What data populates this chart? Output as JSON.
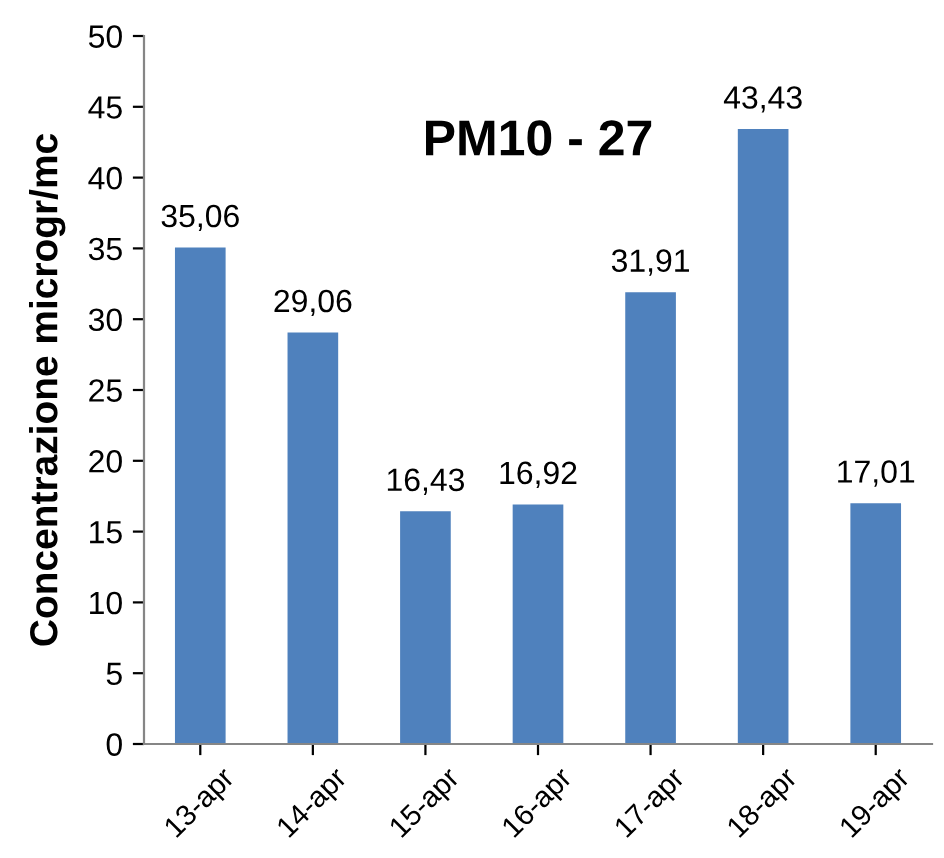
{
  "chart_data": {
    "type": "bar",
    "title": "PM10 - 27",
    "ylabel": "Concentrazione microgr/mc",
    "categories": [
      "13-apr",
      "14-apr",
      "15-apr",
      "16-apr",
      "17-apr",
      "18-apr",
      "19-apr"
    ],
    "values": [
      35.06,
      29.06,
      16.43,
      16.92,
      31.91,
      43.43,
      17.01
    ],
    "value_labels": [
      "35,06",
      "29,06",
      "16,43",
      "16,92",
      "31,91",
      "43,43",
      "17,01"
    ],
    "color": "#4f81bd",
    "ylim": [
      0,
      50
    ],
    "yticks": [
      0,
      5,
      10,
      15,
      20,
      25,
      30,
      35,
      40,
      45,
      50
    ],
    "grid": false,
    "legend": false
  }
}
